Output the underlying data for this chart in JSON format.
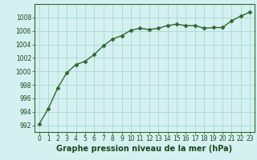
{
  "x": [
    0,
    1,
    2,
    3,
    4,
    5,
    6,
    7,
    8,
    9,
    10,
    11,
    12,
    13,
    14,
    15,
    16,
    17,
    18,
    19,
    20,
    21,
    22,
    23
  ],
  "y": [
    992.2,
    994.5,
    997.5,
    999.8,
    1001.0,
    1001.5,
    1002.5,
    1003.8,
    1004.8,
    1005.3,
    1006.1,
    1006.4,
    1006.2,
    1006.4,
    1006.8,
    1007.0,
    1006.8,
    1006.8,
    1006.4,
    1006.5,
    1006.5,
    1007.5,
    1008.2,
    1008.8
  ],
  "line_color": "#2d6a2d",
  "marker": "D",
  "marker_size": 2.5,
  "line_width": 1.0,
  "bg_color": "#d4f0f0",
  "grid_color": "#a8d8d8",
  "xlabel": "Graphe pression niveau de la mer (hPa)",
  "xlabel_fontsize": 7,
  "xlabel_color": "#1a4a1a",
  "ylim": [
    991,
    1010
  ],
  "xlim": [
    -0.5,
    23.5
  ],
  "yticks": [
    992,
    994,
    996,
    998,
    1000,
    1002,
    1004,
    1006,
    1008
  ],
  "xticks": [
    0,
    1,
    2,
    3,
    4,
    5,
    6,
    7,
    8,
    9,
    10,
    11,
    12,
    13,
    14,
    15,
    16,
    17,
    18,
    19,
    20,
    21,
    22,
    23
  ],
  "tick_fontsize": 5.5,
  "tick_color": "#1a4a1a",
  "spine_color": "#2d6a2d"
}
